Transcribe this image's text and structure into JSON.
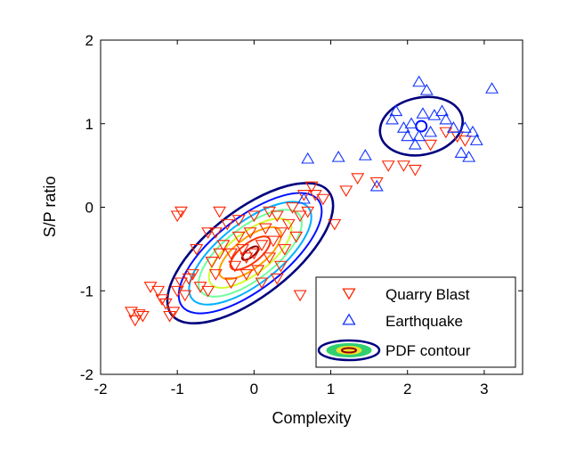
{
  "chart_data": {
    "type": "scatter",
    "title": "",
    "xlabel": "Complexity",
    "ylabel": "S/P ratio",
    "xlim": [
      -2,
      3.5
    ],
    "ylim": [
      -2,
      2
    ],
    "xticks": [
      -2,
      -1,
      0,
      1,
      2,
      3
    ],
    "yticks": [
      -2,
      -1,
      0,
      1,
      2
    ],
    "xtick_labels": [
      "-2",
      "-1",
      "0",
      "1",
      "2",
      "3"
    ],
    "ytick_labels": [
      "-2",
      "-1",
      "0",
      "1",
      "2"
    ],
    "grid": false,
    "legend_position": "bottom-right",
    "series": [
      {
        "name": "Quarry Blast",
        "marker": "triangle-down",
        "color": "#ff2200",
        "points": [
          [
            -1.6,
            -1.25
          ],
          [
            -1.55,
            -1.35
          ],
          [
            -1.5,
            -1.28
          ],
          [
            -1.45,
            -1.3
          ],
          [
            -1.35,
            -0.95
          ],
          [
            -1.25,
            -1.0
          ],
          [
            -1.2,
            -1.1
          ],
          [
            -1.15,
            -1.15
          ],
          [
            -1.1,
            -1.3
          ],
          [
            -1.05,
            -1.25
          ],
          [
            -1.0,
            -1.0
          ],
          [
            -0.95,
            -0.9
          ],
          [
            -0.9,
            -1.05
          ],
          [
            -0.85,
            -0.85
          ],
          [
            -0.8,
            -0.8
          ],
          [
            -1.0,
            -0.1
          ],
          [
            -0.95,
            -0.05
          ],
          [
            -0.75,
            -0.5
          ],
          [
            -0.7,
            -0.95
          ],
          [
            -0.6,
            -0.3
          ],
          [
            -0.55,
            -0.65
          ],
          [
            -0.5,
            -0.8
          ],
          [
            -0.45,
            -0.05
          ],
          [
            -0.4,
            -0.45
          ],
          [
            -0.35,
            -0.2
          ],
          [
            -0.3,
            -0.55
          ],
          [
            -0.25,
            -0.7
          ],
          [
            -0.2,
            -0.35
          ],
          [
            -0.15,
            -0.5
          ],
          [
            -0.1,
            -0.6
          ],
          [
            -0.05,
            -0.3
          ],
          [
            0.0,
            -0.55
          ],
          [
            0.05,
            -0.75
          ],
          [
            0.1,
            -0.45
          ],
          [
            0.15,
            -0.25
          ],
          [
            0.2,
            -0.6
          ],
          [
            0.25,
            -0.4
          ],
          [
            0.3,
            -0.1
          ],
          [
            0.35,
            -0.3
          ],
          [
            0.4,
            -0.5
          ],
          [
            0.45,
            -0.2
          ],
          [
            0.5,
            0.0
          ],
          [
            0.55,
            -0.35
          ],
          [
            0.6,
            -0.1
          ],
          [
            0.65,
            0.15
          ],
          [
            0.7,
            -0.05
          ],
          [
            0.75,
            0.25
          ],
          [
            0.8,
            0.15
          ],
          [
            0.9,
            0.1
          ],
          [
            0.6,
            -1.05
          ],
          [
            0.3,
            -0.85
          ],
          [
            1.05,
            -0.2
          ],
          [
            1.2,
            0.2
          ],
          [
            1.35,
            0.35
          ],
          [
            1.6,
            0.3
          ],
          [
            1.75,
            0.5
          ],
          [
            1.95,
            0.5
          ],
          [
            2.1,
            0.45
          ],
          [
            2.3,
            0.75
          ],
          [
            2.5,
            0.9
          ],
          [
            2.65,
            0.85
          ],
          [
            2.75,
            0.8
          ],
          [
            -0.5,
            -0.3
          ],
          [
            -0.2,
            -0.15
          ],
          [
            0.0,
            -0.1
          ],
          [
            0.2,
            -0.05
          ],
          [
            -0.3,
            -0.9
          ],
          [
            -0.6,
            -1.0
          ],
          [
            0.1,
            -0.9
          ],
          [
            -0.1,
            -0.8
          ],
          [
            -0.45,
            -0.55
          ],
          [
            0.35,
            -0.7
          ]
        ]
      },
      {
        "name": "Earthquake",
        "marker": "triangle-up",
        "color": "#1133ff",
        "points": [
          [
            0.7,
            0.58
          ],
          [
            0.65,
            0.1
          ],
          [
            1.1,
            0.6
          ],
          [
            1.45,
            0.62
          ],
          [
            1.6,
            0.25
          ],
          [
            1.8,
            1.05
          ],
          [
            1.85,
            1.15
          ],
          [
            1.95,
            0.95
          ],
          [
            2.0,
            0.85
          ],
          [
            2.05,
            1.0
          ],
          [
            2.1,
            0.75
          ],
          [
            2.15,
            1.5
          ],
          [
            2.2,
            1.12
          ],
          [
            2.25,
            1.4
          ],
          [
            2.3,
            0.9
          ],
          [
            2.35,
            1.1
          ],
          [
            2.45,
            1.15
          ],
          [
            2.5,
            1.05
          ],
          [
            2.6,
            0.95
          ],
          [
            2.7,
            0.65
          ],
          [
            2.75,
            0.95
          ],
          [
            2.8,
            0.6
          ],
          [
            2.85,
            0.9
          ],
          [
            2.9,
            0.8
          ],
          [
            3.1,
            1.42
          ],
          [
            2.15,
            0.85
          ]
        ]
      }
    ],
    "contours": {
      "name": "PDF contour",
      "colors": [
        "#00007f",
        "#0010ff",
        "#00b0ff",
        "#70ffa0",
        "#d0ff30",
        "#ffa000",
        "#ff3000",
        "#8b0000"
      ]
    },
    "legend_entries": [
      "Quarry Blast",
      "Earthquake",
      "PDF contour"
    ]
  }
}
